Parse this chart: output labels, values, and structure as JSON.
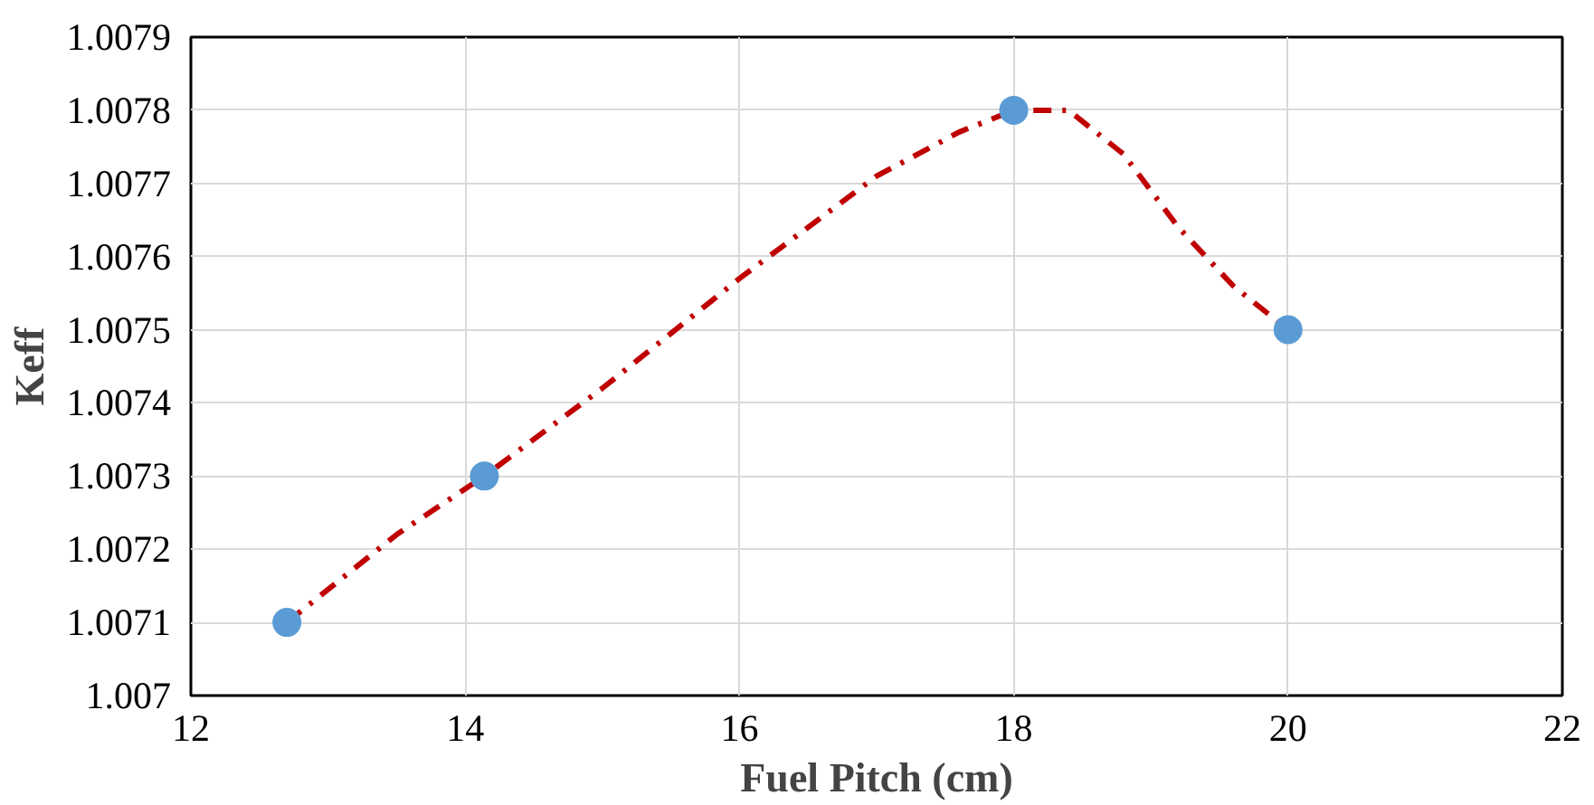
{
  "chart_data": {
    "type": "scatter",
    "xlabel": "Fuel Pitch (cm)",
    "ylabel": "Keff",
    "xlim": [
      12,
      22
    ],
    "xticks": [
      12,
      14,
      16,
      18,
      20,
      22
    ],
    "ylim": [
      1.007,
      1.0079
    ],
    "yticks": [
      1.007,
      1.0071,
      1.0072,
      1.0073,
      1.0074,
      1.0075,
      1.0076,
      1.0077,
      1.0078,
      1.0079
    ],
    "grid": true,
    "series": [
      {
        "type": "line",
        "color": "#c00000",
        "line_style": "dashed",
        "marker": "none",
        "x": [
          12.7,
          13.5,
          14.14,
          15,
          16,
          17,
          17.6,
          18,
          18.4,
          18.8,
          19.2,
          19.6,
          20
        ],
        "values": [
          1.0071,
          1.00722,
          1.0073,
          1.00742,
          1.00757,
          1.00771,
          1.00777,
          1.0078,
          1.0078,
          1.00774,
          1.00764,
          1.00756,
          1.0075
        ]
      },
      {
        "color": "#5b9bd5",
        "marker": "circle",
        "x": [
          12.7,
          14.14,
          18,
          20
        ],
        "values": [
          1.0071,
          1.0073,
          1.0078,
          1.0075
        ]
      }
    ]
  }
}
